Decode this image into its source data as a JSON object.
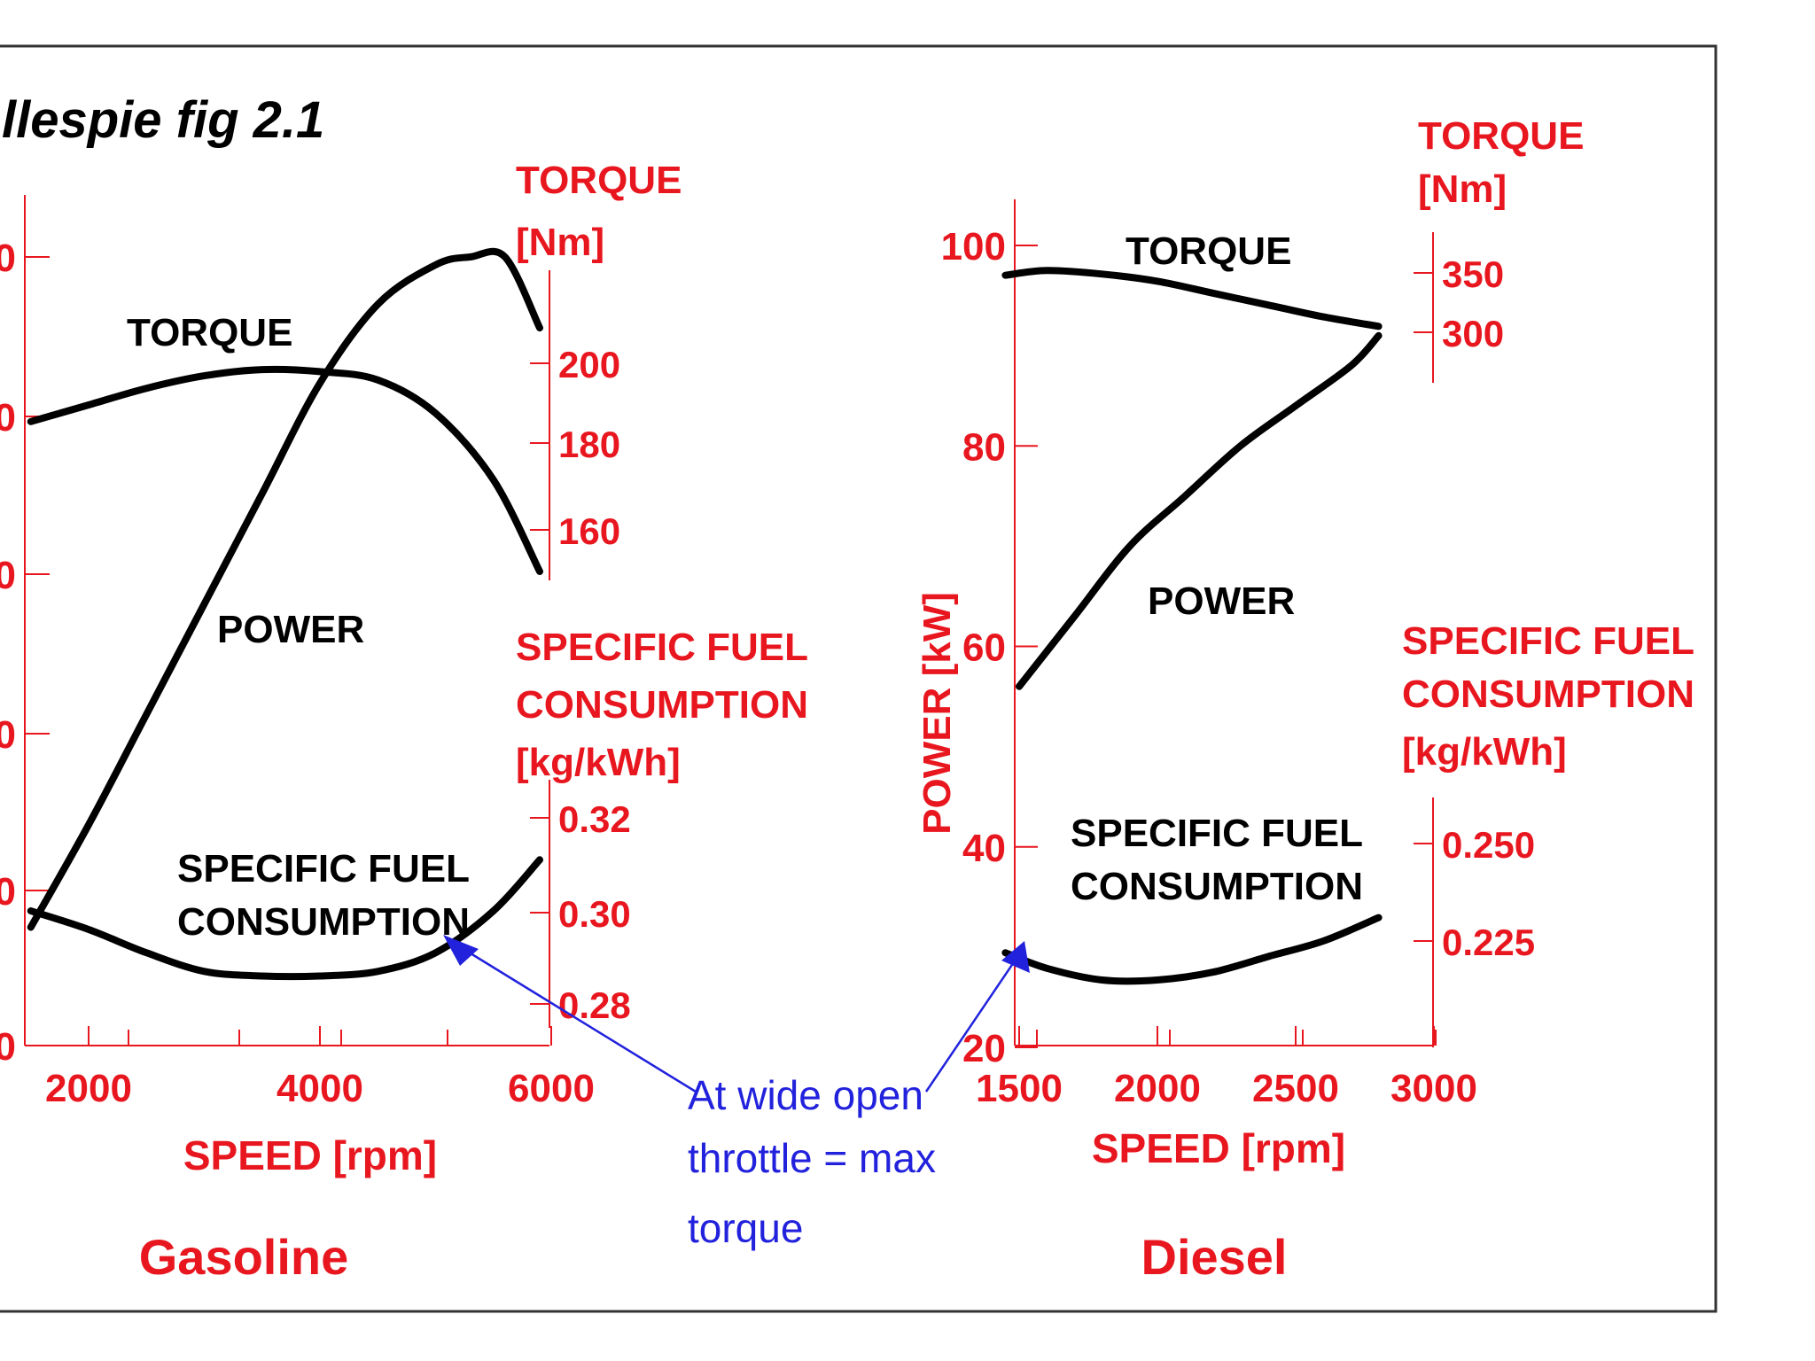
{
  "figure": {
    "title": "llespie fig 2.1",
    "annotation": [
      "At wide open",
      "throttle = max",
      "torque"
    ],
    "colors": {
      "axis": "#e8171f",
      "curve": "#000000",
      "annotation": "#2222dd",
      "frame": "#333333"
    }
  },
  "chart_data": [
    {
      "type": "line",
      "caption": "Gasoline",
      "xlabel": "SPEED [rpm]",
      "xlim": [
        1000,
        6000
      ],
      "x_ticks": [
        "2000",
        "4000",
        "6000"
      ],
      "left_axis": {
        "label": "",
        "ylim": [
          0,
          100
        ],
        "tick_labels": [
          "0",
          "0",
          "0",
          "0",
          "0",
          "0"
        ]
      },
      "torque_axis": {
        "label": [
          "TORQUE",
          "[Nm]"
        ],
        "ylim": [
          150,
          200
        ],
        "ticks": [
          "200",
          "180",
          "160"
        ]
      },
      "sfc_axis": {
        "label": [
          "SPECIFIC FUEL",
          "CONSUMPTION",
          "[kg/kWh]"
        ],
        "ylim": [
          0.27,
          0.33
        ],
        "ticks": [
          "0.32",
          "0.30",
          "0.28"
        ]
      },
      "series": [
        {
          "name": "TORQUE",
          "axis": "torque",
          "x": [
            1500,
            2000,
            2500,
            3000,
            3500,
            4000,
            4500,
            5000,
            5500,
            5900
          ],
          "y": [
            186,
            190,
            194,
            197,
            198.5,
            198,
            196,
            188,
            172,
            150
          ]
        },
        {
          "name": "POWER",
          "axis": "left",
          "x": [
            1500,
            2000,
            2500,
            3000,
            3500,
            4000,
            4500,
            5000,
            5300,
            5600,
            5900
          ],
          "y": [
            15,
            28,
            42,
            56,
            70,
            84,
            94,
            99,
            100,
            100,
            91
          ]
        },
        {
          "name": "SPECIFIC FUEL CONSUMPTION",
          "label_lines": [
            "SPECIFIC FUEL",
            "CONSUMPTION"
          ],
          "axis": "sfc",
          "x": [
            1500,
            2000,
            2500,
            3000,
            3500,
            4000,
            4500,
            5000,
            5500,
            5900
          ],
          "y": [
            0.3,
            0.296,
            0.291,
            0.287,
            0.286,
            0.286,
            0.287,
            0.291,
            0.3,
            0.311
          ]
        }
      ]
    },
    {
      "type": "line",
      "caption": "Diesel",
      "xlabel": "SPEED [rpm]",
      "xlim": [
        1400,
        3000
      ],
      "x_ticks": [
        "1500",
        "2000",
        "2500",
        "3000"
      ],
      "left_axis": {
        "label": "POWER [kW]",
        "ylim": [
          20,
          105
        ],
        "ticks": [
          "100",
          "80",
          "60",
          "40",
          "20"
        ]
      },
      "torque_axis": {
        "label": [
          "TORQUE",
          "[Nm]"
        ],
        "ylim": [
          270,
          370
        ],
        "ticks": [
          "350",
          "300"
        ]
      },
      "sfc_axis": {
        "label": [
          "SPECIFIC FUEL",
          "CONSUMPTION",
          "[kg/kWh]"
        ],
        "ylim": [
          0.2,
          0.265
        ],
        "ticks": [
          "0.250",
          "0.225"
        ]
      },
      "series": [
        {
          "name": "TORQUE",
          "axis": "torque",
          "x": [
            1450,
            1600,
            1800,
            2000,
            2200,
            2400,
            2600,
            2800
          ],
          "y": [
            348,
            352,
            349,
            343,
            333,
            323,
            313,
            305
          ]
        },
        {
          "name": "POWER",
          "axis": "left",
          "x": [
            1500,
            1700,
            1900,
            2100,
            2300,
            2500,
            2700,
            2800
          ],
          "y": [
            56,
            63,
            70,
            75,
            80,
            84,
            88,
            91
          ]
        },
        {
          "name": "SPECIFIC FUEL CONSUMPTION",
          "label_lines": [
            "SPECIFIC FUEL",
            "CONSUMPTION"
          ],
          "axis": "sfc",
          "x": [
            1450,
            1600,
            1800,
            2000,
            2200,
            2400,
            2600,
            2800
          ],
          "y": [
            0.222,
            0.218,
            0.215,
            0.215,
            0.217,
            0.221,
            0.225,
            0.231
          ]
        }
      ]
    }
  ]
}
